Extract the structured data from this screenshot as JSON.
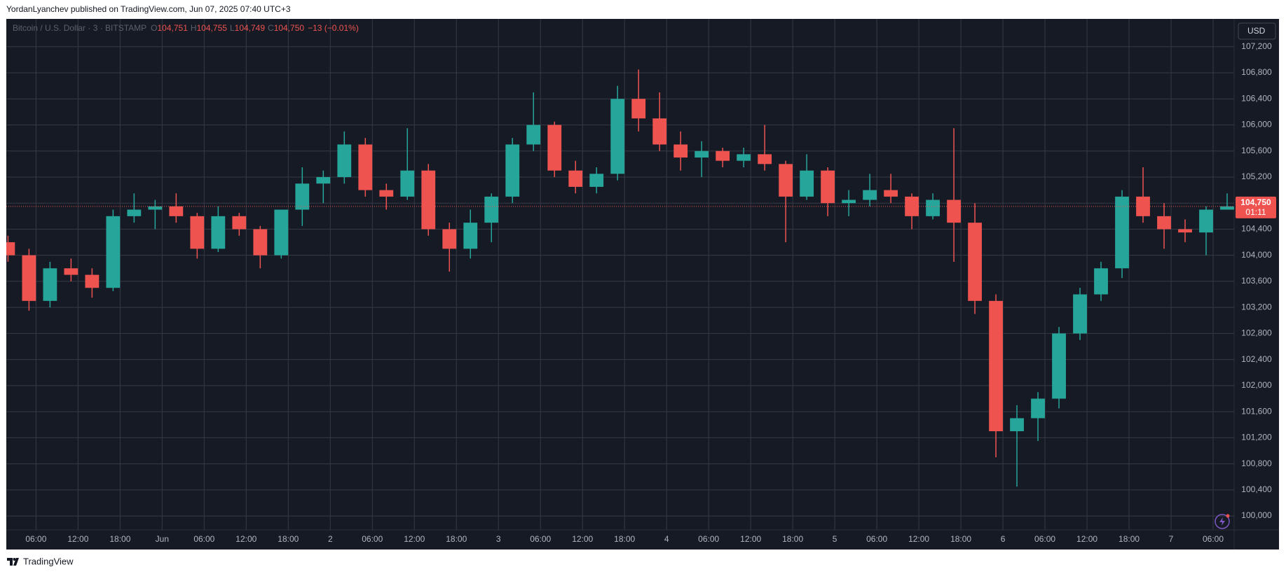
{
  "chart_data": {
    "type": "candlestick",
    "header": "YordanLyanchev published on TradingView.com, Jun 07, 2025 07:40 UTC+3",
    "symbol": "Bitcoin / U.S. Dollar · 3 · BITSTAMP",
    "legend": [
      {
        "label": "O",
        "value": "104,751"
      },
      {
        "label": "H",
        "value": "104,755"
      },
      {
        "label": "L",
        "value": "104,749"
      },
      {
        "label": "C",
        "value": "104,750"
      }
    ],
    "change": "−13 (−0.01%)",
    "currency": "USD",
    "footer": "TradingView",
    "up_color": "#26a69a",
    "down_color": "#ef5350",
    "x": [
      2,
      5,
      8,
      11,
      14,
      17,
      20,
      23,
      26,
      29,
      32,
      35,
      38,
      41,
      44,
      47,
      50,
      53,
      56,
      59,
      62,
      65,
      68,
      71,
      74,
      77,
      80,
      83,
      86,
      89,
      92,
      95,
      98,
      101,
      104,
      107,
      110,
      113,
      116,
      119,
      122,
      125,
      128,
      131,
      134,
      137,
      140,
      143,
      146,
      149,
      152,
      155,
      158,
      161,
      164,
      167,
      170,
      173,
      176
    ],
    "open": [
      104200,
      104000,
      103300,
      103800,
      103700,
      103500,
      104600,
      104700,
      104750,
      104600,
      104100,
      104600,
      104400,
      104000,
      104700,
      105100,
      105200,
      105700,
      105000,
      104900,
      105300,
      104400,
      104100,
      104500,
      104900,
      105700,
      106000,
      105300,
      105050,
      105250,
      106400,
      106100,
      105700,
      105500,
      105600,
      105450,
      105550,
      105400,
      104900,
      105300,
      104800,
      104850,
      105000,
      104900,
      104600,
      104850,
      104500,
      103300,
      101300,
      101500,
      101800,
      102800,
      103400,
      103800,
      104900,
      104600,
      104400,
      104350,
      104700
    ],
    "high": [
      104300,
      104100,
      103900,
      103950,
      103800,
      104700,
      104950,
      104850,
      104950,
      104650,
      104750,
      104650,
      104450,
      104700,
      105350,
      105300,
      105900,
      105800,
      105100,
      105950,
      105400,
      104500,
      104700,
      104950,
      105800,
      106500,
      106050,
      105450,
      105350,
      106600,
      106850,
      106500,
      105900,
      105750,
      105650,
      105650,
      106000,
      105450,
      105550,
      105350,
      105000,
      105250,
      105250,
      104950,
      104950,
      105950,
      104800,
      103400,
      101700,
      101900,
      102900,
      103500,
      103900,
      105000,
      105350,
      104800,
      104550,
      104750,
      104950
    ],
    "low": [
      103900,
      103150,
      103200,
      103600,
      103350,
      103450,
      104500,
      104400,
      104500,
      103950,
      104050,
      104300,
      103800,
      103950,
      104450,
      104800,
      105100,
      104900,
      104700,
      104850,
      104300,
      103750,
      103950,
      104200,
      104800,
      105600,
      105200,
      104950,
      104950,
      105150,
      105900,
      105600,
      105300,
      105200,
      105350,
      105350,
      105300,
      104200,
      104850,
      104600,
      104600,
      104750,
      104800,
      104400,
      104550,
      103900,
      103100,
      100900,
      100450,
      101150,
      101650,
      102700,
      103300,
      103650,
      104500,
      104100,
      104200,
      104000,
      104700
    ],
    "close": [
      104000,
      103300,
      103800,
      103700,
      103500,
      104600,
      104700,
      104750,
      104600,
      104100,
      104600,
      104400,
      104000,
      104700,
      105100,
      105200,
      105700,
      105000,
      104900,
      105300,
      104400,
      104100,
      104500,
      104900,
      105700,
      106000,
      105300,
      105050,
      105250,
      106400,
      106100,
      105700,
      105500,
      105600,
      105450,
      105550,
      105400,
      104900,
      105300,
      104800,
      104850,
      105000,
      104900,
      104600,
      104850,
      104500,
      103300,
      101300,
      101500,
      101800,
      102800,
      103400,
      103800,
      104900,
      104600,
      104400,
      104350,
      104700,
      104750
    ],
    "last_price": {
      "value": 104750,
      "label": "104,750"
    },
    "countdown": "01:11",
    "xlim": [
      1.76,
      177
    ],
    "xticks": [
      {
        "value": 6,
        "label": "06:00"
      },
      {
        "value": 12,
        "label": "12:00"
      },
      {
        "value": 18,
        "label": "18:00"
      },
      {
        "value": 24,
        "label": "Jun"
      },
      {
        "value": 30,
        "label": "06:00"
      },
      {
        "value": 36,
        "label": "12:00"
      },
      {
        "value": 42,
        "label": "18:00"
      },
      {
        "value": 48,
        "label": "2"
      },
      {
        "value": 54,
        "label": "06:00"
      },
      {
        "value": 60,
        "label": "12:00"
      },
      {
        "value": 66,
        "label": "18:00"
      },
      {
        "value": 72,
        "label": "3"
      },
      {
        "value": 78,
        "label": "06:00"
      },
      {
        "value": 84,
        "label": "12:00"
      },
      {
        "value": 90,
        "label": "18:00"
      },
      {
        "value": 96,
        "label": "4"
      },
      {
        "value": 102,
        "label": "06:00"
      },
      {
        "value": 108,
        "label": "12:00"
      },
      {
        "value": 114,
        "label": "18:00"
      },
      {
        "value": 120,
        "label": "5"
      },
      {
        "value": 126,
        "label": "06:00"
      },
      {
        "value": 132,
        "label": "12:00"
      },
      {
        "value": 138,
        "label": "18:00"
      },
      {
        "value": 144,
        "label": "6"
      },
      {
        "value": 150,
        "label": "06:00"
      },
      {
        "value": 156,
        "label": "12:00"
      },
      {
        "value": 162,
        "label": "18:00"
      },
      {
        "value": 168,
        "label": "7"
      },
      {
        "value": 174,
        "label": "06:00"
      }
    ],
    "ylim": [
      99786,
      107627
    ],
    "yticks": [
      {
        "value": 100000,
        "label": "100,000"
      },
      {
        "value": 100400,
        "label": "100,400"
      },
      {
        "value": 100800,
        "label": "100,800"
      },
      {
        "value": 101200,
        "label": "101,200"
      },
      {
        "value": 101600,
        "label": "101,600"
      },
      {
        "value": 102000,
        "label": "102,000"
      },
      {
        "value": 102400,
        "label": "102,400"
      },
      {
        "value": 102800,
        "label": "102,800"
      },
      {
        "value": 103200,
        "label": "103,200"
      },
      {
        "value": 103600,
        "label": "103,600"
      },
      {
        "value": 104000,
        "label": "104,000"
      },
      {
        "value": 104400,
        "label": "104,400"
      },
      {
        "value": 104800,
        "label": "104,800"
      },
      {
        "value": 105200,
        "label": "105,200"
      },
      {
        "value": 105600,
        "label": "105,600"
      },
      {
        "value": 106000,
        "label": "106,000"
      },
      {
        "value": 106400,
        "label": "106,400"
      },
      {
        "value": 106800,
        "label": "106,800"
      },
      {
        "value": 107200,
        "label": "107,200"
      }
    ],
    "grid": true
  }
}
